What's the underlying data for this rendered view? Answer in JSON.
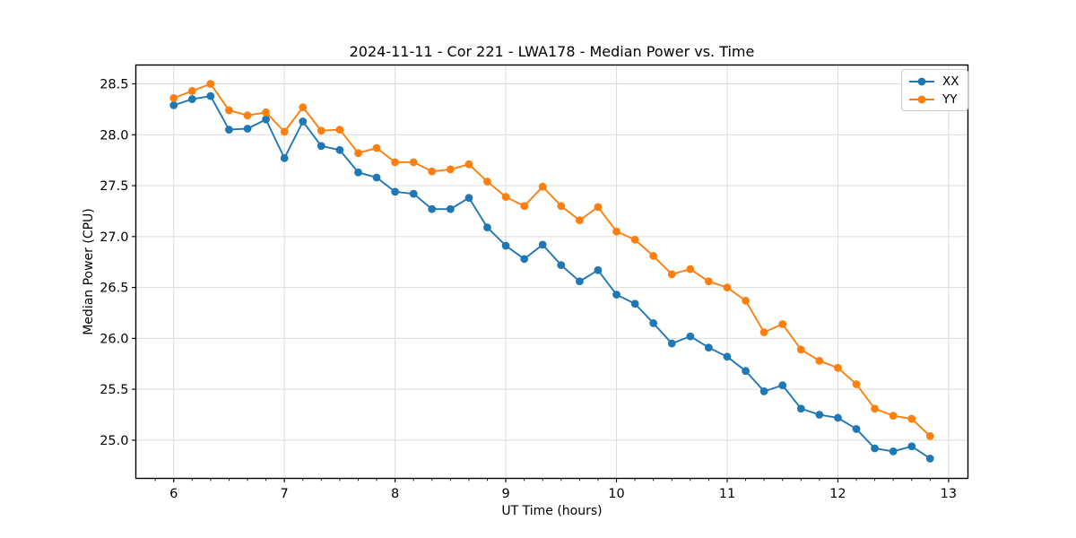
{
  "page": {
    "background": "#ffffff"
  },
  "chart_data": {
    "type": "line",
    "title": "2024-11-11 - Cor 221 - LWA178 - Median Power vs. Time",
    "xlabel": "UT Time (hours)",
    "ylabel": "Median Power (CPU)",
    "xlim": [
      5.658,
      13.175
    ],
    "ylim": [
      24.625,
      28.685
    ],
    "xticks": [
      6,
      7,
      8,
      9,
      10,
      11,
      12,
      13
    ],
    "xtick_labels": [
      "6",
      "7",
      "8",
      "9",
      "10",
      "11",
      "12",
      "13"
    ],
    "yticks": [
      25.0,
      25.5,
      26.0,
      26.5,
      27.0,
      27.5,
      28.0,
      28.5
    ],
    "ytick_labels": [
      "25.0",
      "25.5",
      "26.0",
      "26.5",
      "27.0",
      "27.5",
      "28.0",
      "28.5"
    ],
    "minor_xtick_step": 0.1666667,
    "grid": true,
    "grid_color": "#dcdcdc",
    "legend": {
      "position": "upper right",
      "entries": [
        "XX",
        "YY"
      ]
    },
    "x": [
      6.0,
      6.167,
      6.333,
      6.5,
      6.667,
      6.833,
      7.0,
      7.167,
      7.333,
      7.5,
      7.667,
      7.833,
      8.0,
      8.167,
      8.333,
      8.5,
      8.667,
      8.833,
      9.0,
      9.167,
      9.333,
      9.5,
      9.667,
      9.833,
      10.0,
      10.167,
      10.333,
      10.5,
      10.667,
      10.833,
      11.0,
      11.167,
      11.333,
      11.5,
      11.667,
      11.833,
      12.0,
      12.167,
      12.333,
      12.5,
      12.667,
      12.833
    ],
    "series": [
      {
        "name": "XX",
        "color": "#1f77b4",
        "values": [
          28.29,
          28.35,
          28.38,
          28.05,
          28.06,
          28.15,
          27.77,
          28.13,
          27.89,
          27.85,
          27.63,
          27.58,
          27.44,
          27.42,
          27.27,
          27.27,
          27.38,
          27.09,
          26.91,
          26.78,
          26.92,
          26.72,
          26.56,
          26.67,
          26.43,
          26.34,
          26.15,
          25.95,
          26.02,
          25.91,
          25.82,
          25.68,
          25.48,
          25.54,
          25.31,
          25.25,
          25.22,
          25.11,
          24.92,
          24.89,
          24.94,
          24.82
        ]
      },
      {
        "name": "YY",
        "color": "#ff7f0e",
        "values": [
          28.36,
          28.43,
          28.5,
          28.24,
          28.19,
          28.22,
          28.03,
          28.27,
          28.04,
          28.05,
          27.82,
          27.87,
          27.73,
          27.73,
          27.64,
          27.66,
          27.71,
          27.54,
          27.39,
          27.3,
          27.49,
          27.3,
          27.16,
          27.29,
          27.05,
          26.97,
          26.81,
          26.63,
          26.68,
          26.56,
          26.5,
          26.37,
          26.06,
          26.14,
          25.89,
          25.78,
          25.71,
          25.55,
          25.31,
          25.24,
          25.21,
          25.04
        ]
      }
    ]
  }
}
